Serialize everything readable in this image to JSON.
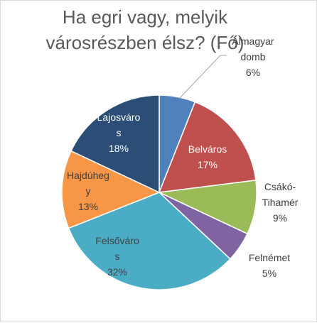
{
  "chart_data": {
    "type": "pie",
    "title_lines": [
      "Ha egri vagy, melyik",
      "városrészben élsz? (Fő)"
    ],
    "slices": [
      {
        "name": "Almagyar domb",
        "value": 6,
        "label_lines": [
          "Almagyar",
          "domb",
          "6%"
        ],
        "color": "#4f81bd",
        "label_color": "#404040"
      },
      {
        "name": "Belváros",
        "value": 17,
        "label_lines": [
          "Belváros",
          "17%"
        ],
        "color": "#c0504d",
        "label_color": "#ffffff"
      },
      {
        "name": "Csákó-Tihamér",
        "value": 9,
        "label_lines": [
          "Csákó-",
          "Tihamér",
          "9%"
        ],
        "color": "#9bbb59",
        "label_color": "#404040"
      },
      {
        "name": "Felnémet",
        "value": 5,
        "label_lines": [
          "Felnémet",
          "5%"
        ],
        "color": "#8064a2",
        "label_color": "#404040"
      },
      {
        "name": "Felsőváros",
        "value": 32,
        "label_lines": [
          "Felsőváro",
          "s",
          "32%"
        ],
        "color": "#4bacc6",
        "label_color": "#404040"
      },
      {
        "name": "Hajdúhegy",
        "value": 13,
        "label_lines": [
          "Hajdúheg",
          "y",
          "13%"
        ],
        "color": "#f79646",
        "label_color": "#404040"
      },
      {
        "name": "Lajosváros",
        "value": 18,
        "label_lines": [
          "Lajosváro",
          "s",
          "18%"
        ],
        "color": "#2c4d75",
        "label_color": "#ffffff"
      }
    ]
  }
}
